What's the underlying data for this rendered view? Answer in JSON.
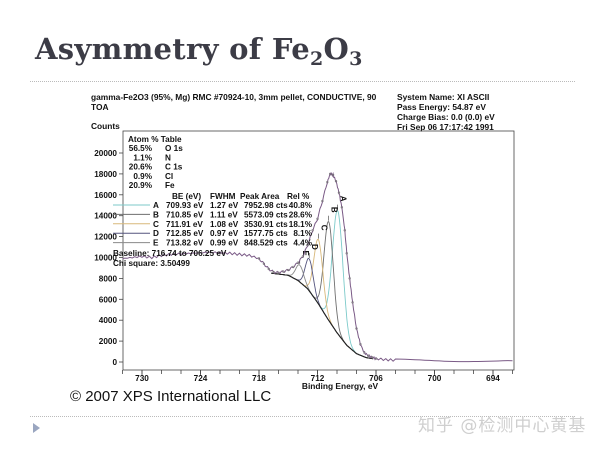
{
  "slide": {
    "title_main": "Asymmetry of Fe",
    "title_sub1": "2",
    "title_o": "O",
    "title_sub2": "3",
    "copyright": "© 2007 XPS International LLC",
    "watermark": "知乎 @检测中心黄基"
  },
  "chart_data": {
    "type": "line",
    "header": {
      "sample_line1": "gamma-Fe2O3 (95%, Mg) RMC #70924-10, 3mm pellet, CONDUCTIVE, 90",
      "sample_line2": "TOA",
      "system_name": "System Name:   XI ASCII",
      "pass_energy": "Pass Energy:  54.87 eV",
      "charge_bias": "Charge Bias: 0.0 (0.0) eV",
      "date": "Fri Sep 06 17:17:42 1991"
    },
    "ylabel": "Counts",
    "xlabel": "Binding Energy, eV",
    "xlim": [
      732,
      692
    ],
    "ylim": [
      -800,
      21000
    ],
    "x_reversed": true,
    "x_ticks": [
      730,
      724,
      718,
      712,
      706,
      700,
      694
    ],
    "y_ticks": [
      0,
      2000,
      4000,
      6000,
      8000,
      10000,
      12000,
      14000,
      16000,
      18000,
      20000
    ],
    "atom_table": {
      "title": "Atom % Table",
      "rows": [
        {
          "pct": "56.5%",
          "el": "O 1s"
        },
        {
          "pct": "1.1%",
          "el": "N"
        },
        {
          "pct": "20.6%",
          "el": "C 1s"
        },
        {
          "pct": "0.9%",
          "el": "Cl"
        },
        {
          "pct": "20.9%",
          "el": "Fe"
        }
      ]
    },
    "fit_table": {
      "headers": [
        "BE (eV)",
        "FWHM",
        "Peak Area",
        "Rel %"
      ],
      "rows": [
        {
          "name": "A",
          "be": "709.93 eV",
          "fwhm": "1.27 eV",
          "area": "7952.98 cts",
          "rel": "40.8%",
          "be_val": 709.93,
          "fwhm_val": 1.27,
          "area_val": 7952.98,
          "color": "#7ccaca"
        },
        {
          "name": "B",
          "be": "710.85 eV",
          "fwhm": "1.11 eV",
          "area": "5573.09 cts",
          "rel": "28.6%",
          "be_val": 710.85,
          "fwhm_val": 1.11,
          "area_val": 5573.09,
          "color": "#6e6e6e"
        },
        {
          "name": "C",
          "be": "711.91 eV",
          "fwhm": "1.08 eV",
          "area": "3530.91 cts",
          "rel": "18.1%",
          "be_val": 711.91,
          "fwhm_val": 1.08,
          "area_val": 3530.91,
          "color": "#d8b87a"
        },
        {
          "name": "D",
          "be": "712.85 eV",
          "fwhm": "0.97 eV",
          "area": "1577.75 cts",
          "rel": "8.1%",
          "be_val": 712.85,
          "fwhm_val": 0.97,
          "area_val": 1577.75,
          "color": "#55557e"
        },
        {
          "name": "E",
          "be": "713.82 eV",
          "fwhm": "0.99 eV",
          "area": "848.529 cts",
          "rel": "4.4%",
          "be_val": 713.82,
          "fwhm_val": 0.99,
          "area_val": 848.529,
          "color": "#8a8a8a"
        }
      ],
      "baseline": "Baseline:  716.74 to  706.25 eV",
      "chi": "Chi square: 3.50499"
    },
    "baseline_points": [
      [
        716.74,
        8500
      ],
      [
        715,
        8300
      ],
      [
        714,
        7800
      ],
      [
        713,
        7000
      ],
      [
        712,
        5700
      ],
      [
        711,
        4200
      ],
      [
        710,
        2800
      ],
      [
        709,
        1600
      ],
      [
        708,
        800
      ],
      [
        707,
        420
      ],
      [
        706.25,
        300
      ]
    ],
    "spectrum": {
      "x": [
        732,
        731,
        730,
        729,
        728,
        727,
        726,
        725,
        724,
        723,
        722,
        721,
        720,
        719,
        718,
        717.5,
        717,
        716.5,
        716,
        715.5,
        715,
        714.5,
        714,
        713.5,
        713,
        712.5,
        712,
        711.5,
        711,
        710.7,
        710.4,
        710.1,
        709.8,
        709.5,
        709.2,
        709,
        708.7,
        708.4,
        708,
        707.6,
        707.2,
        706.8,
        706.4,
        706,
        705,
        704,
        702,
        700,
        698,
        696,
        694,
        692
      ],
      "y": [
        9900,
        10000,
        10100,
        10000,
        10200,
        10300,
        10350,
        10400,
        10450,
        10500,
        10450,
        10400,
        10300,
        10200,
        9900,
        9400,
        8900,
        8600,
        8550,
        8650,
        8800,
        9100,
        9500,
        10100,
        11200,
        12600,
        13700,
        15400,
        17200,
        18000,
        17900,
        17300,
        16200,
        14800,
        12600,
        10400,
        8000,
        5700,
        3200,
        1700,
        900,
        600,
        450,
        320,
        220,
        180,
        160,
        150,
        140,
        150,
        140,
        120
      ]
    },
    "envelope_color": "#7a5a86",
    "colors": {
      "axis": "#111111",
      "baseline": "#222222"
    }
  }
}
